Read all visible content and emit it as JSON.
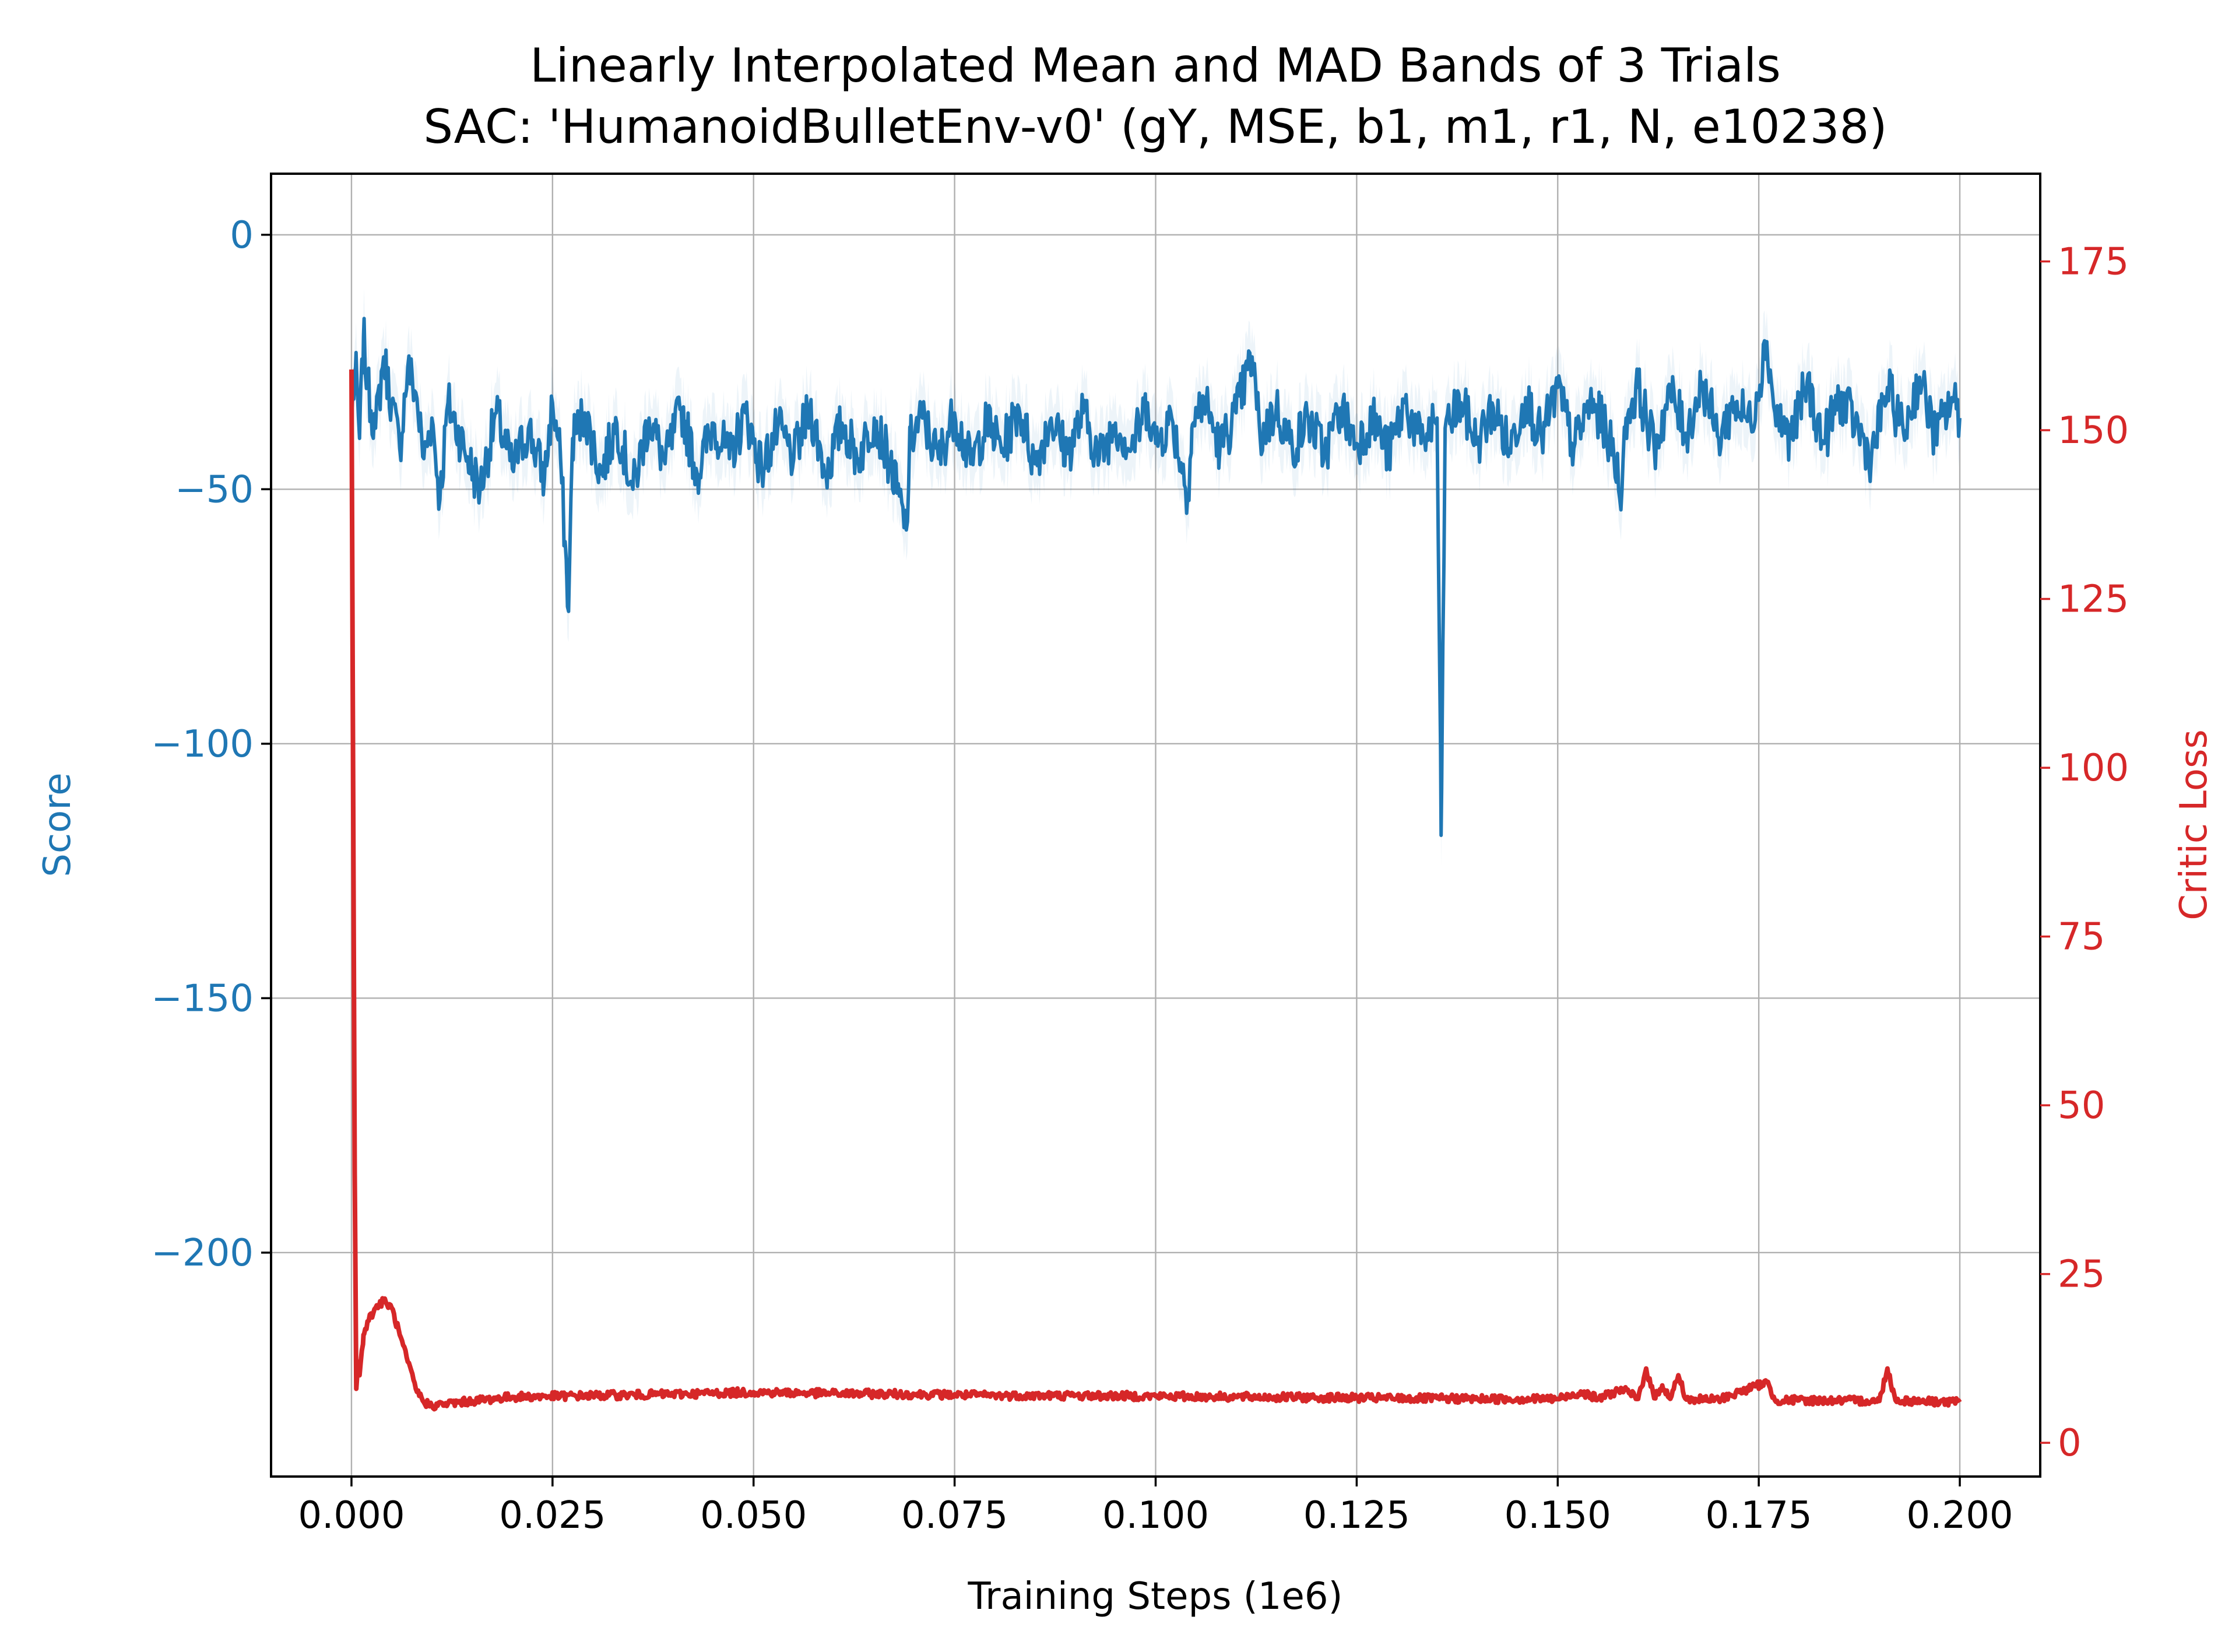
{
  "colors": {
    "score": "#1f77b4",
    "loss": "#d62728",
    "grid": "#b0b0b0",
    "axis": "#000000",
    "background": "#ffffff"
  },
  "chart_data": {
    "type": "line",
    "title": "Linearly Interpolated Mean and MAD Bands of 3 Trials",
    "subtitle": "SAC: 'HumanoidBulletEnv-v0' (gY, MSE, b1, m1, r1, N, e10238)",
    "xlabel": "Training Steps (1e6)",
    "ylabel_left": "Score",
    "ylabel_right": "Critic Loss",
    "x_ticks": [
      "0.000",
      "0.025",
      "0.050",
      "0.075",
      "0.100",
      "0.125",
      "0.150",
      "0.175",
      "0.200"
    ],
    "x_tick_values": [
      0.0,
      0.025,
      0.05,
      0.075,
      0.1,
      0.125,
      0.15,
      0.175,
      0.2
    ],
    "y_left_ticks": [
      "0",
      "−50",
      "−100",
      "−150",
      "−200"
    ],
    "y_left_tick_values": [
      0,
      -50,
      -100,
      -150,
      -200
    ],
    "y_right_ticks": [
      "0",
      "25",
      "50",
      "75",
      "100",
      "125",
      "150",
      "175"
    ],
    "y_right_tick_values": [
      0,
      25,
      50,
      75,
      100,
      125,
      150,
      175
    ],
    "xlim": [
      -0.01,
      0.21
    ],
    "ylim_left": [
      -244,
      12
    ],
    "ylim_right": [
      -5,
      188
    ],
    "grid": true,
    "series": [
      {
        "name": "Score",
        "axis": "left",
        "color": "#1f77b4",
        "mean_points": [
          [
            0.0,
            -36
          ],
          [
            0.0005,
            -26
          ],
          [
            0.001,
            -40
          ],
          [
            0.0015,
            -20
          ],
          [
            0.002,
            -30
          ],
          [
            0.003,
            -38
          ],
          [
            0.004,
            -24
          ],
          [
            0.005,
            -33
          ],
          [
            0.006,
            -42
          ],
          [
            0.007,
            -26
          ],
          [
            0.008,
            -31
          ],
          [
            0.009,
            -44
          ],
          [
            0.01,
            -36
          ],
          [
            0.011,
            -52
          ],
          [
            0.012,
            -33
          ],
          [
            0.014,
            -42
          ],
          [
            0.016,
            -50
          ],
          [
            0.018,
            -35
          ],
          [
            0.02,
            -46
          ],
          [
            0.022,
            -38
          ],
          [
            0.024,
            -48
          ],
          [
            0.025,
            -33
          ],
          [
            0.026,
            -44
          ],
          [
            0.027,
            -74
          ],
          [
            0.0275,
            -40
          ],
          [
            0.029,
            -35
          ],
          [
            0.031,
            -47
          ],
          [
            0.033,
            -37
          ],
          [
            0.035,
            -50
          ],
          [
            0.037,
            -36
          ],
          [
            0.039,
            -45
          ],
          [
            0.041,
            -34
          ],
          [
            0.043,
            -47
          ],
          [
            0.045,
            -37
          ],
          [
            0.047,
            -44
          ],
          [
            0.049,
            -35
          ],
          [
            0.051,
            -46
          ],
          [
            0.053,
            -38
          ],
          [
            0.055,
            -44
          ],
          [
            0.057,
            -34
          ],
          [
            0.059,
            -47
          ],
          [
            0.061,
            -37
          ],
          [
            0.063,
            -44
          ],
          [
            0.065,
            -36
          ],
          [
            0.067,
            -45
          ],
          [
            0.069,
            -58
          ],
          [
            0.0695,
            -40
          ],
          [
            0.071,
            -36
          ],
          [
            0.073,
            -44
          ],
          [
            0.075,
            -35
          ],
          [
            0.077,
            -45
          ],
          [
            0.079,
            -37
          ],
          [
            0.081,
            -42
          ],
          [
            0.083,
            -34
          ],
          [
            0.085,
            -45
          ],
          [
            0.087,
            -36
          ],
          [
            0.089,
            -43
          ],
          [
            0.091,
            -35
          ],
          [
            0.093,
            -44
          ],
          [
            0.095,
            -37
          ],
          [
            0.097,
            -42
          ],
          [
            0.099,
            -33
          ],
          [
            0.1,
            -41
          ],
          [
            0.102,
            -36
          ],
          [
            0.104,
            -51
          ],
          [
            0.1045,
            -38
          ],
          [
            0.106,
            -32
          ],
          [
            0.108,
            -42
          ],
          [
            0.11,
            -35
          ],
          [
            0.112,
            -24
          ],
          [
            0.113,
            -40
          ],
          [
            0.115,
            -34
          ],
          [
            0.117,
            -42
          ],
          [
            0.119,
            -36
          ],
          [
            0.121,
            -43
          ],
          [
            0.123,
            -34
          ],
          [
            0.125,
            -41
          ],
          [
            0.127,
            -36
          ],
          [
            0.129,
            -43
          ],
          [
            0.131,
            -33
          ],
          [
            0.133,
            -41
          ],
          [
            0.135,
            -36
          ],
          [
            0.1355,
            -118
          ],
          [
            0.136,
            -38
          ],
          [
            0.138,
            -33
          ],
          [
            0.14,
            -41
          ],
          [
            0.142,
            -34
          ],
          [
            0.144,
            -42
          ],
          [
            0.146,
            -32
          ],
          [
            0.148,
            -40
          ],
          [
            0.15,
            -30
          ],
          [
            0.152,
            -42
          ],
          [
            0.154,
            -33
          ],
          [
            0.156,
            -38
          ],
          [
            0.158,
            -50
          ],
          [
            0.1585,
            -36
          ],
          [
            0.16,
            -30
          ],
          [
            0.162,
            -42
          ],
          [
            0.164,
            -31
          ],
          [
            0.166,
            -39
          ],
          [
            0.168,
            -29
          ],
          [
            0.17,
            -40
          ],
          [
            0.172,
            -33
          ],
          [
            0.174,
            -37
          ],
          [
            0.176,
            -21
          ],
          [
            0.177,
            -35
          ],
          [
            0.179,
            -40
          ],
          [
            0.181,
            -29
          ],
          [
            0.183,
            -41
          ],
          [
            0.185,
            -32
          ],
          [
            0.187,
            -37
          ],
          [
            0.189,
            -44
          ],
          [
            0.191,
            -30
          ],
          [
            0.193,
            -39
          ],
          [
            0.195,
            -28
          ],
          [
            0.197,
            -40
          ],
          [
            0.199,
            -32
          ],
          [
            0.2,
            -36
          ]
        ],
        "noise_amplitude": 5
      },
      {
        "name": "Critic Loss",
        "axis": "right",
        "color": "#d62728",
        "mean_points": [
          [
            0.0,
            159
          ],
          [
            0.0002,
            100
          ],
          [
            0.0004,
            40
          ],
          [
            0.0006,
            8
          ],
          [
            0.0008,
            12
          ],
          [
            0.001,
            10
          ],
          [
            0.0015,
            16
          ],
          [
            0.002,
            18
          ],
          [
            0.003,
            20
          ],
          [
            0.004,
            21
          ],
          [
            0.005,
            20
          ],
          [
            0.006,
            16
          ],
          [
            0.007,
            12
          ],
          [
            0.008,
            8
          ],
          [
            0.009,
            6
          ],
          [
            0.01,
            5.5
          ],
          [
            0.012,
            5.8
          ],
          [
            0.015,
            6.2
          ],
          [
            0.02,
            6.8
          ],
          [
            0.03,
            7.0
          ],
          [
            0.04,
            7.2
          ],
          [
            0.05,
            7.5
          ],
          [
            0.06,
            7.3
          ],
          [
            0.07,
            7.2
          ],
          [
            0.08,
            7.0
          ],
          [
            0.09,
            7.0
          ],
          [
            0.1,
            6.9
          ],
          [
            0.11,
            6.8
          ],
          [
            0.12,
            6.7
          ],
          [
            0.13,
            6.6
          ],
          [
            0.14,
            6.5
          ],
          [
            0.15,
            6.5
          ],
          [
            0.153,
            7.5
          ],
          [
            0.155,
            6.5
          ],
          [
            0.158,
            8.0
          ],
          [
            0.16,
            6.5
          ],
          [
            0.161,
            11.0
          ],
          [
            0.162,
            6.6
          ],
          [
            0.163,
            8.5
          ],
          [
            0.164,
            6.5
          ],
          [
            0.165,
            10.0
          ],
          [
            0.166,
            6.4
          ],
          [
            0.17,
            6.4
          ],
          [
            0.176,
            9.0
          ],
          [
            0.177,
            6.3
          ],
          [
            0.18,
            6.3
          ],
          [
            0.19,
            6.2
          ],
          [
            0.191,
            11.0
          ],
          [
            0.192,
            6.3
          ],
          [
            0.2,
            6.0
          ]
        ],
        "noise_amplitude": 0.6
      }
    ]
  }
}
